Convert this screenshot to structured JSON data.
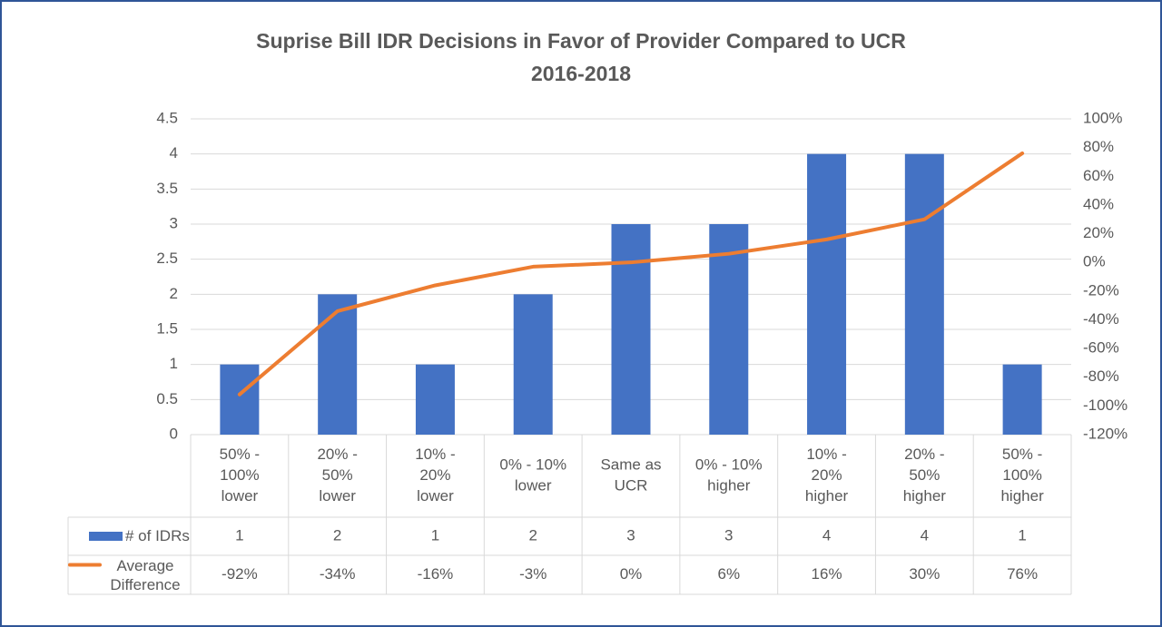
{
  "chart_data": {
    "type": "bar_line",
    "title": [
      "Suprise Bill IDR Decisions in Favor of Provider Compared to UCR",
      "2016-2018"
    ],
    "categories": [
      [
        "50% -",
        "100%",
        "lower"
      ],
      [
        "20% -",
        "50%",
        "lower"
      ],
      [
        "10% -",
        "20%",
        "lower"
      ],
      [
        "0% - 10%",
        "lower"
      ],
      [
        "Same as",
        "UCR"
      ],
      [
        "0% - 10%",
        "higher"
      ],
      [
        "10% -",
        "20%",
        "higher"
      ],
      [
        "20% -",
        "50%",
        "higher"
      ],
      [
        "50% -",
        "100%",
        "higher"
      ]
    ],
    "series": [
      {
        "name": "# of IDRs",
        "type": "bar",
        "color": "#4472c4",
        "values": [
          1,
          2,
          1,
          2,
          3,
          3,
          4,
          4,
          1
        ]
      },
      {
        "name": "Average Difference",
        "type": "line",
        "axis": "y2",
        "color": "#ed7d31",
        "values": [
          -92,
          -34,
          -16,
          -3,
          0,
          6,
          16,
          30,
          76
        ],
        "value_labels": [
          "-92%",
          "-34%",
          "-16%",
          "-3%",
          "0%",
          "6%",
          "16%",
          "30%",
          "76%"
        ]
      }
    ],
    "ylim": [
      0,
      4.5
    ],
    "yticks": [
      0,
      0.5,
      1,
      1.5,
      2,
      2.5,
      3,
      3.5,
      4,
      4.5
    ],
    "y2lim": [
      -120,
      100
    ],
    "y2ticks": [
      {
        "value": -120,
        "label": "-120%"
      },
      {
        "value": -100,
        "label": "-100%"
      },
      {
        "value": -80,
        "label": "-80%"
      },
      {
        "value": -60,
        "label": "-60%"
      },
      {
        "value": -40,
        "label": "-40%"
      },
      {
        "value": -20,
        "label": "-20%"
      },
      {
        "value": 0,
        "label": "0%"
      },
      {
        "value": 20,
        "label": "20%"
      },
      {
        "value": 40,
        "label": "40%"
      },
      {
        "value": 60,
        "label": "60%"
      },
      {
        "value": 80,
        "label": "80%"
      },
      {
        "value": 100,
        "label": "100%"
      }
    ],
    "grid": true,
    "data_table": true
  }
}
